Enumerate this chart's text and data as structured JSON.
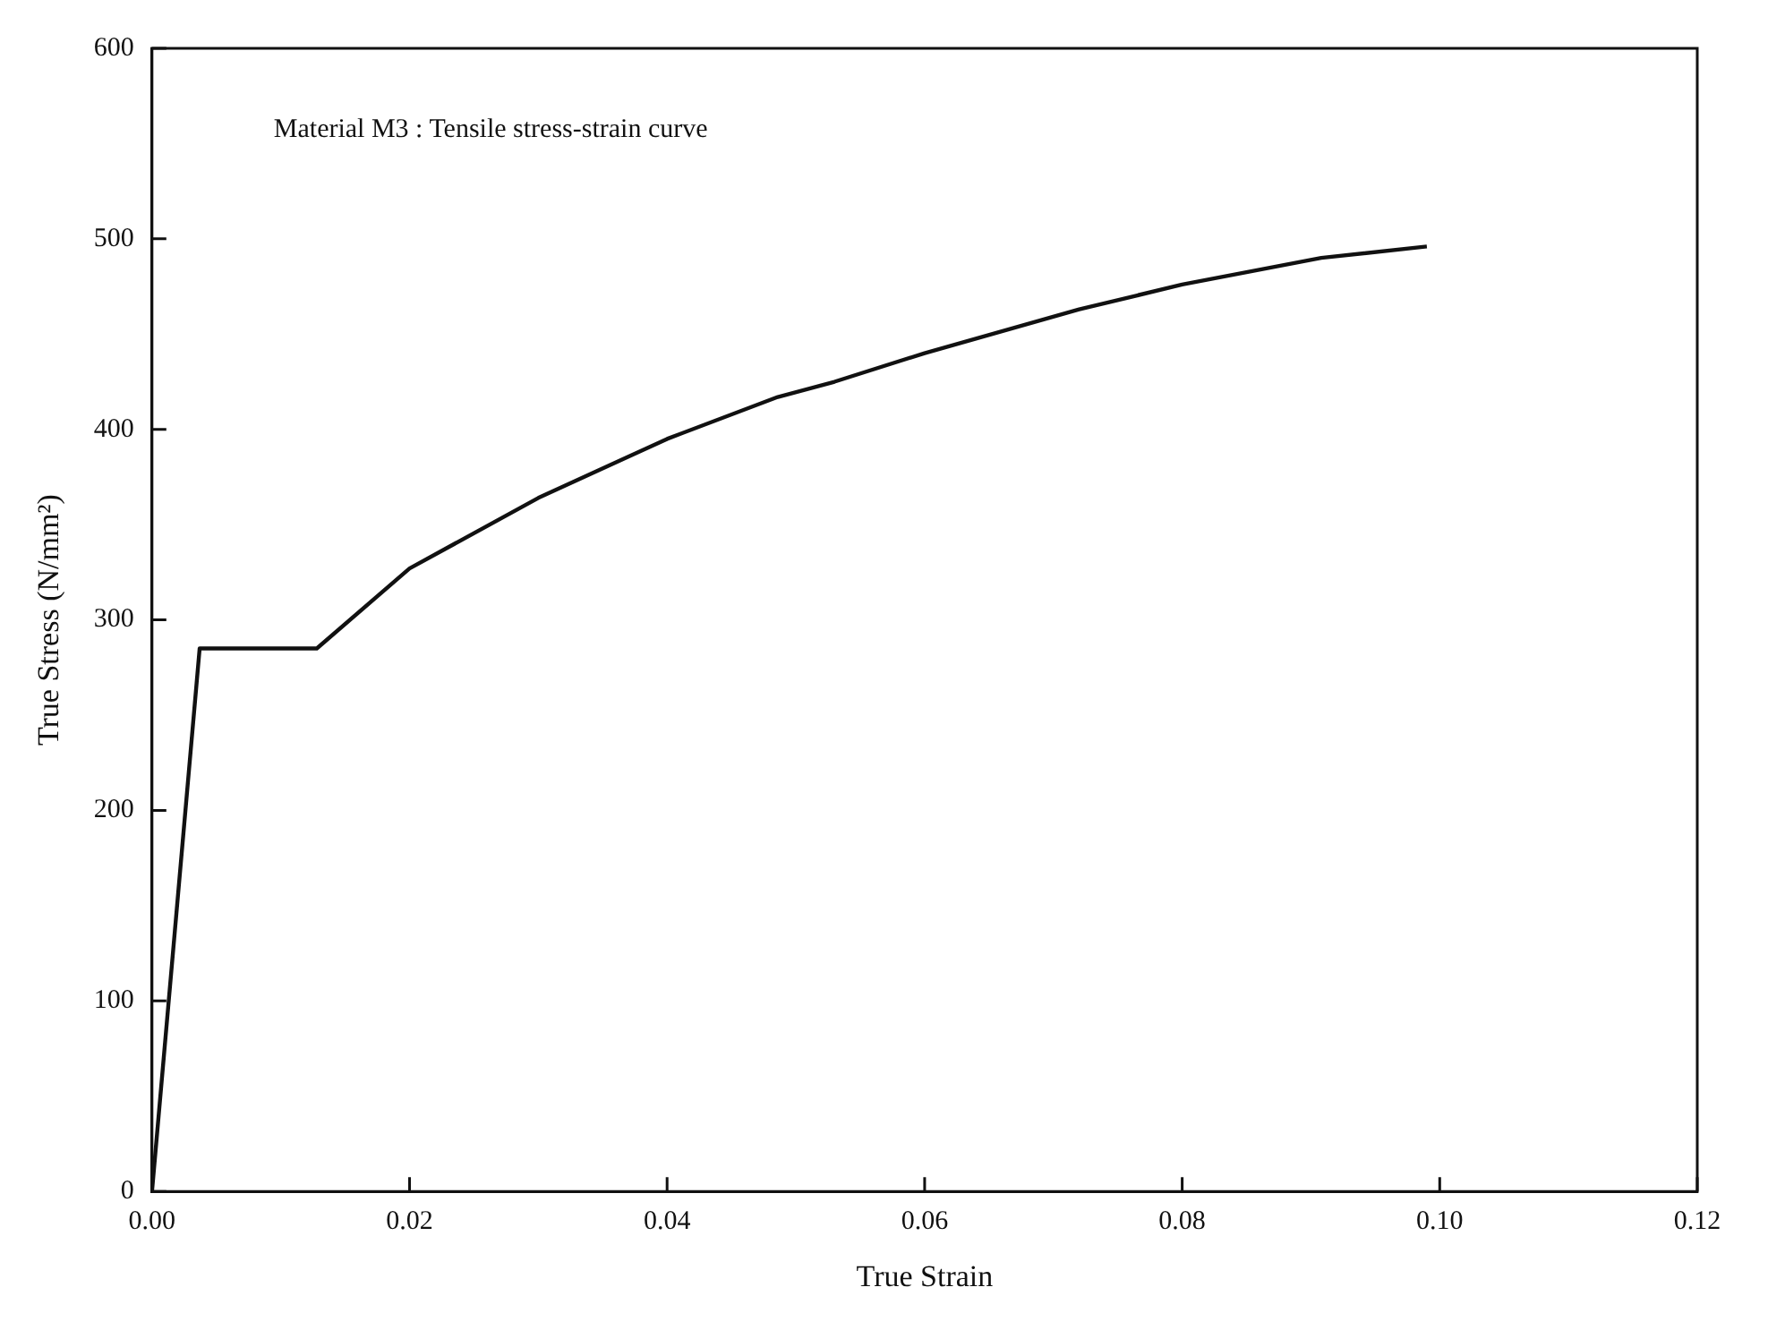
{
  "chart_data": {
    "type": "line",
    "xlabel": "True Strain",
    "ylabel": "True Stress (N/mm²)",
    "annotations": [
      "Material M3 : Tensile stress-strain curve"
    ],
    "series": [
      {
        "color": "#111111",
        "x": [
          0,
          0.0037,
          0.0128,
          0.02,
          0.03,
          0.04,
          0.0486,
          0.053,
          0.06,
          0.072,
          0.08,
          0.0908,
          0.099
        ],
        "values": [
          0,
          285,
          285,
          327,
          364,
          395,
          417,
          425,
          440,
          463,
          476,
          490,
          496
        ]
      }
    ],
    "xlim": [
      0,
      0.12
    ],
    "xticks": [
      {
        "value": 0,
        "label": "0.00"
      },
      {
        "value": 0.02,
        "label": "0.02"
      },
      {
        "value": 0.04,
        "label": "0.04"
      },
      {
        "value": 0.06,
        "label": "0.06"
      },
      {
        "value": 0.08,
        "label": "0.08"
      },
      {
        "value": 0.1,
        "label": "0.10"
      },
      {
        "value": 0.12,
        "label": "0.12"
      }
    ],
    "ylim": [
      0,
      600
    ],
    "yticks": [
      0,
      100,
      200,
      300,
      400,
      500,
      600
    ],
    "grid": false,
    "legend": false,
    "marker": "none",
    "line_style": "solid"
  }
}
